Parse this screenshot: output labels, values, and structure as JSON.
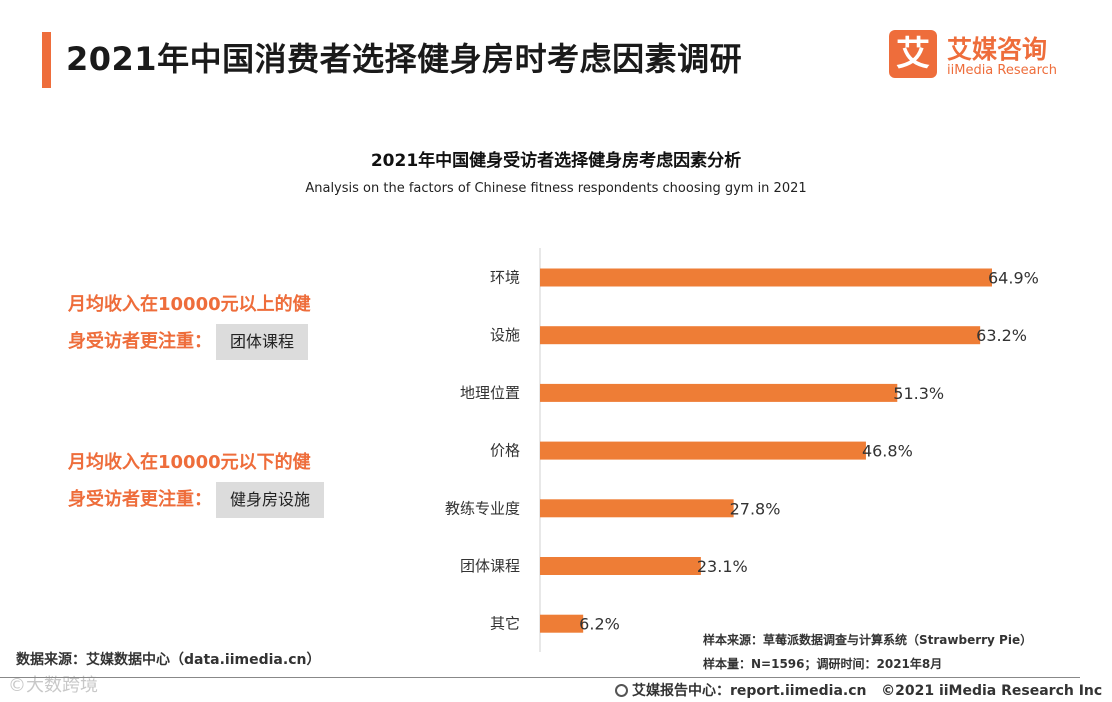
{
  "header": {
    "title": "2021年中国消费者选择健身房时考虑因素调研",
    "logo_mark": "艾",
    "logo_cn": "艾媒咨询",
    "logo_en": "iiMedia Research"
  },
  "callouts": {
    "high_income_line1": "月均收入在10000元以上的健",
    "high_income_line2": "身受访者更注重：",
    "high_income_tag": "团体课程",
    "low_income_line1": "月均收入在10000元以下的健",
    "low_income_line2": "身受访者更注重：",
    "low_income_tag": "健身房设施"
  },
  "chart_data": {
    "type": "bar",
    "orientation": "horizontal",
    "title": "2021年中国健身受访者选择健身房考虑因素分析",
    "subtitle": "Analysis on the factors of Chinese fitness respondents choosing gym in 2021",
    "categories": [
      "环境",
      "设施",
      "地理位置",
      "价格",
      "教练专业度",
      "团体课程",
      "其它"
    ],
    "values": [
      64.9,
      63.2,
      51.3,
      46.8,
      27.8,
      23.1,
      6.2
    ],
    "value_labels": [
      "64.9%",
      "63.2%",
      "51.3%",
      "46.8%",
      "27.8%",
      "23.1%",
      "6.2%"
    ],
    "unit": "%",
    "xlim": [
      0,
      64.9
    ],
    "bar_color": "#ee7d36"
  },
  "notes": {
    "sample_source": "样本来源：草莓派数据调查与计算系统（Strawberry Pie）",
    "sample_size": "样本量：N=1596；调研时间：2021年8月",
    "data_source": "数据来源：艾媒数据中心（data.iimedia.cn）"
  },
  "footer": {
    "report_center": "艾媒报告中心：report.iimedia.cn",
    "copyright": "©2021  iiMedia Research  Inc",
    "watermark": "©大数跨境"
  },
  "colors": {
    "accent": "#ee6d3b",
    "bar": "#ee7d36"
  }
}
